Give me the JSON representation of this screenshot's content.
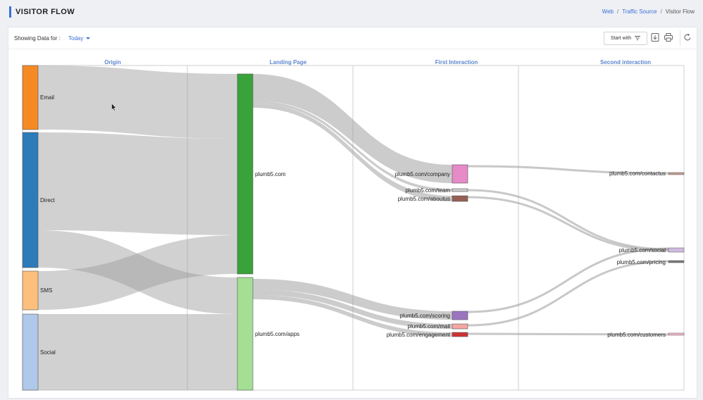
{
  "page": {
    "title": "VISITOR FLOW",
    "breadcrumb": [
      {
        "label": "Web",
        "link": true
      },
      {
        "label": "Traffic Source",
        "link": true
      },
      {
        "label": "Visitor Flow",
        "link": false
      }
    ]
  },
  "toolbar": {
    "showing_label": "Showing Data for :",
    "range_value": "Today",
    "start_with_label": "Start with",
    "icons": [
      "download-icon",
      "print-icon",
      "refresh-icon"
    ]
  },
  "flow": {
    "columns": [
      "Origin",
      "Landing Page",
      "First Interaction",
      "Second interaction"
    ],
    "nodes": {
      "origin": [
        {
          "label": "Email",
          "color": "#f58a25"
        },
        {
          "label": "Direct",
          "color": "#2d7bb8"
        },
        {
          "label": "SMS",
          "color": "#fdbf7e"
        },
        {
          "label": "Social",
          "color": "#b0c8e9"
        }
      ],
      "landing": [
        {
          "label": "plumb5.com",
          "color": "#3aa23a"
        },
        {
          "label": "plumb5.com/apps",
          "color": "#a4df94"
        }
      ],
      "first": [
        {
          "label": "plumb5.com/company",
          "color": "#e68ac8"
        },
        {
          "label": "plumb5.com/team",
          "color": "#cfcfcf"
        },
        {
          "label": "plumb5.com/aboutus",
          "color": "#956056"
        },
        {
          "label": "plumb5.com/scoring",
          "color": "#9b76bf"
        },
        {
          "label": "plumb5.com/mail",
          "color": "#f5a7a4"
        },
        {
          "label": "plumb5.com/engagement",
          "color": "#cf3232"
        }
      ],
      "second": [
        {
          "label": "plumb5.com/contactus",
          "color": "#c79c93"
        },
        {
          "label": "plumb5.com/social",
          "color": "#cfbbdf"
        },
        {
          "label": "plumb5.com/pricing",
          "color": "#7a7a7a"
        },
        {
          "label": "plumb5.com/customers",
          "color": "#f3b5ce"
        }
      ]
    }
  }
}
